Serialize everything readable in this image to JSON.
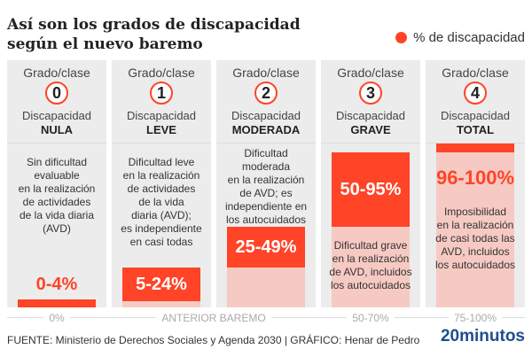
{
  "title": {
    "line1": "Así son los grados de discapacidad",
    "line2": "según el nuevo baremo"
  },
  "legend": {
    "label": "% de discapacidad",
    "color": "#ff4428"
  },
  "columns": [
    {
      "grado_label": "Grado/clase",
      "number": "0",
      "disc_label": "Discapacidad",
      "level": "NULA",
      "range": "0-4%",
      "description": [
        "Sin dificultad",
        "evaluable",
        "en la realización",
        "de actividades",
        "de la vida diaria",
        "(AVD)"
      ]
    },
    {
      "grado_label": "Grado/clase",
      "number": "1",
      "disc_label": "Discapacidad",
      "level": "LEVE",
      "range": "5-24%",
      "description": [
        "Dificultad leve",
        "en la realización",
        "de actividades",
        "de la vida",
        "diaria (AVD);",
        "es independiente",
        "en casi todas"
      ]
    },
    {
      "grado_label": "Grado/clase",
      "number": "2",
      "disc_label": "Discapacidad",
      "level": "MODERADA",
      "range": "25-49%",
      "description": [
        "Dificultad",
        "moderada",
        "en la realización",
        "de AVD; es",
        "independiente en",
        "los autocuidados"
      ]
    },
    {
      "grado_label": "Grado/clase",
      "number": "3",
      "disc_label": "Discapacidad",
      "level": "GRAVE",
      "range": "50-95%",
      "description": [
        "Dificultad grave",
        "en la realización",
        "de AVD, incluidos",
        "los autocuidados"
      ]
    },
    {
      "grado_label": "Grado/clase",
      "number": "4",
      "disc_label": "Discapacidad",
      "level": "TOTAL",
      "range": "96-100%",
      "description": [
        "Imposibilidad",
        "en la realización",
        "de casi todas las",
        "AVD, incluidos",
        "los autocuidados"
      ]
    }
  ],
  "axis": {
    "labels": [
      "0%",
      "ANTERIOR BAREMO",
      "50-70%",
      "75-100%"
    ]
  },
  "footer": {
    "source": "FUENTE: Ministerio de Derechos Sociales y Agenda 2030  |  GRÁFICO: Henar de Pedro",
    "logo": "20minutos"
  },
  "chart_data": {
    "type": "bar",
    "title": "Así son los grados de discapacidad según el nuevo baremo",
    "categories": [
      "NULA",
      "LEVE",
      "MODERADA",
      "GRAVE",
      "TOTAL"
    ],
    "ranges": [
      [
        0,
        4
      ],
      [
        5,
        24
      ],
      [
        25,
        49
      ],
      [
        50,
        95
      ],
      [
        96,
        100
      ]
    ],
    "previous_scale": [
      "0%",
      "ANTERIOR BAREMO",
      "50-70%",
      "75-100%"
    ],
    "legend": "% de discapacidad"
  }
}
